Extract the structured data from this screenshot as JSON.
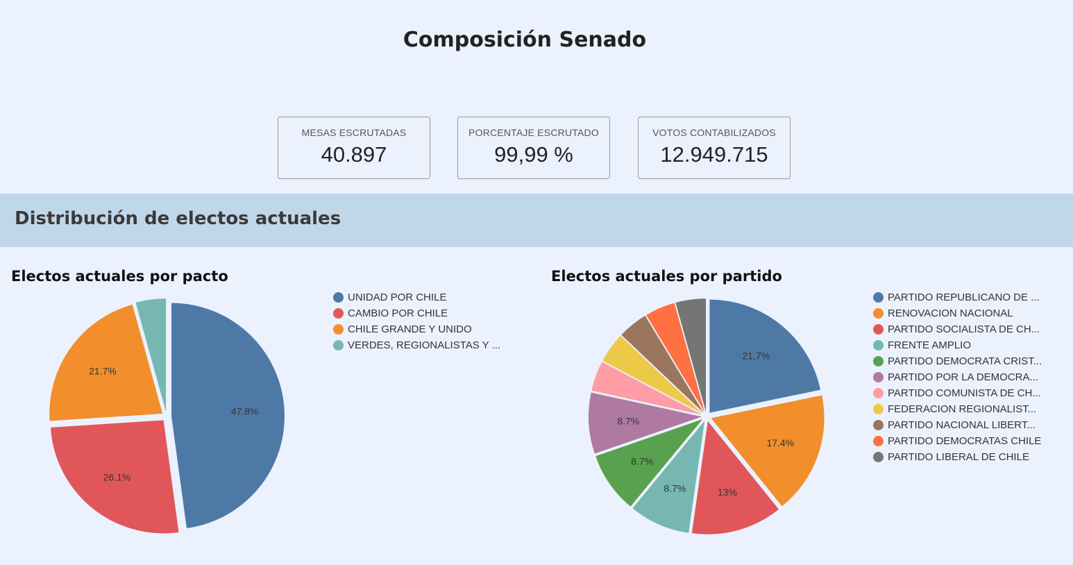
{
  "header": {
    "title": "Composición Senado"
  },
  "stats": [
    {
      "label": "MESAS ESCRUTADAS",
      "value": "40.897"
    },
    {
      "label": "PORCENTAJE ESCRUTADO",
      "value": "99,99 %"
    },
    {
      "label": "VOTOS CONTABILIZADOS",
      "value": "12.949.715"
    }
  ],
  "section": {
    "title": "Distribución de electos actuales"
  },
  "chart_data": [
    {
      "type": "pie",
      "title": "Electos actuales por pacto",
      "legend_position": "right",
      "categories": [
        "UNIDAD POR CHILE",
        "CAMBIO POR CHILE",
        "CHILE GRANDE Y UNIDO",
        "VERDES, REGIONALISTAS Y ..."
      ],
      "values": [
        47.8,
        26.1,
        21.7,
        4.3
      ],
      "labels": [
        "47.8%",
        "26.1%",
        "21.7%",
        ""
      ],
      "colors": [
        "#4e79a7",
        "#e15759",
        "#f28e2b",
        "#76b7b2"
      ]
    },
    {
      "type": "pie",
      "title": "Electos actuales por partido",
      "legend_position": "right",
      "categories": [
        "PARTIDO REPUBLICANO DE ...",
        "RENOVACION NACIONAL",
        "PARTIDO SOCIALISTA DE CH...",
        "FRENTE AMPLIO",
        "PARTIDO DEMOCRATA CRIST...",
        "PARTIDO POR LA DEMOCRA...",
        "PARTIDO COMUNISTA DE CH...",
        "FEDERACION REGIONALIST...",
        "PARTIDO NACIONAL LIBERT...",
        "PARTIDO DEMOCRATAS CHILE",
        "PARTIDO LIBERAL DE CHILE"
      ],
      "values": [
        21.7,
        17.4,
        13,
        8.7,
        8.7,
        8.7,
        4.3,
        4.3,
        4.3,
        4.3,
        4.3
      ],
      "labels": [
        "21.7%",
        "17.4%",
        "13%",
        "8.7%",
        "8.7%",
        "8.7%",
        "",
        "",
        "",
        "",
        ""
      ],
      "colors": [
        "#4e79a7",
        "#f28e2b",
        "#e15759",
        "#76b7b2",
        "#59a14f",
        "#af7aa1",
        "#ff9da7",
        "#edc948",
        "#9c755f",
        "#ff7043",
        "#757575"
      ]
    }
  ]
}
